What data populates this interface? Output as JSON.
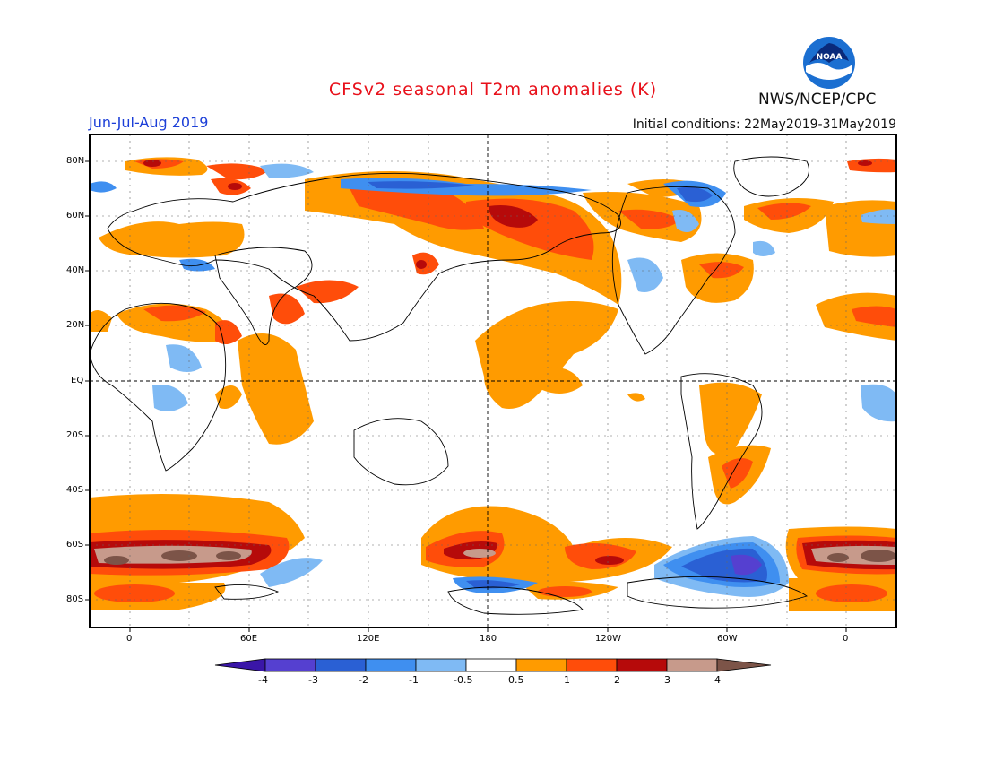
{
  "header": {
    "title": "CFSv2 seasonal T2m anomalies (K)",
    "season": "Jun-Jul-Aug 2019",
    "initial_conditions": "Initial conditions: 22May2019-31May2019",
    "agency": "NWS/NCEP/CPC",
    "logo_text": "NOAA"
  },
  "axes": {
    "lat_labels": [
      "80N",
      "60N",
      "40N",
      "20N",
      "EQ",
      "20S",
      "40S",
      "60S",
      "80S"
    ],
    "lon_labels": [
      "0",
      "60E",
      "120E",
      "180",
      "120W",
      "60W",
      "0"
    ]
  },
  "colorbar": {
    "labels": [
      "-4",
      "-3",
      "-2",
      "-1",
      "-0.5",
      "0.5",
      "1",
      "2",
      "3",
      "4"
    ],
    "colors": [
      "#3a16a8",
      "#5540d0",
      "#2a60d4",
      "#3f8ff0",
      "#7fbaf4",
      "#ffffff",
      "#ff9b00",
      "#ff4d0a",
      "#b60a0a",
      "#c79a8b",
      "#7c5448"
    ]
  },
  "colors": {
    "warm_05_1": "#ff9b00",
    "warm_1_2": "#ff4d0a",
    "warm_2_3": "#b60a0a",
    "warm_3_4": "#c79a8b",
    "warm_gt4": "#7c5448",
    "cool_05_1": "#7fbaf4",
    "cool_1_2": "#3f8ff0",
    "cool_2_3": "#2a60d4",
    "cool_3_4": "#5540d0",
    "title": "#e8101a",
    "season": "#1c3fd8"
  }
}
